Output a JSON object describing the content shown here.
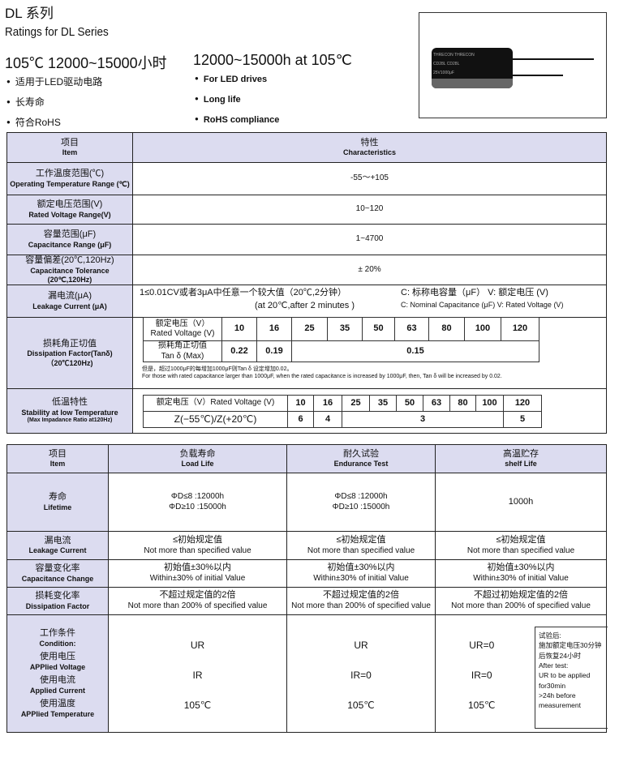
{
  "header": {
    "title": "DL 系列",
    "subtitle": "Ratings for DL  Series",
    "life_cn": "105℃ 12000~15000小时",
    "life_en": "12000~15000h at 105℃",
    "features_cn": [
      "适用于LED驱动电路",
      "长寿命",
      "符合RoHS"
    ],
    "features_en": [
      "For LED drives",
      "Long life",
      "RoHS  compliance"
    ]
  },
  "product_image": {
    "markings": [
      "THRECON",
      "CD28L",
      "25V1000μF"
    ]
  },
  "ratings": {
    "head": {
      "item_cn": "项目",
      "item_en": "Item",
      "char_cn": "特性",
      "char_en": "Characteristics"
    },
    "rows": [
      {
        "cn": "工作温度范围(℃)",
        "en": "Operating Temperature Range (℃)",
        "value": "-55～+105"
      },
      {
        "cn": "额定电压范围(V)",
        "en": "Rated Voltage Range(V)",
        "value": "10~120"
      },
      {
        "cn": "容量范围(μF)",
        "en": "Capacitance Range (μF)",
        "value": "1~4700"
      },
      {
        "cn": "容量偏差(20℃,120Hz)",
        "en": "Capacitance Tolerance (20℃,120Hz)",
        "value": "± 20%"
      }
    ],
    "leakage": {
      "cn": "漏电流(μA)",
      "en": "Leakage Current  (μA)",
      "formula_cn": "1≤0.01CV或者3μA中任意一个较大值（20℃,2分钟）",
      "formula_en": "(at 20℃,after 2 minutes )",
      "legend_cn": "C: 标称电容量（μF） V: 额定电压 (V)",
      "legend_en": "C: Nominal Capacitance (μF)    V: Rated Voltage (V)"
    },
    "dissipation": {
      "cn": "损耗角正切值",
      "en": "Dissipation Factor(Tanδ)",
      "cond": "（20℃120Hz)",
      "voltage_label_cn": "额定电压（V）",
      "voltage_label_en": "Rated Voltage (V)",
      "voltages": [
        "10",
        "16",
        "25",
        "35",
        "50",
        "63",
        "80",
        "100",
        "120"
      ],
      "tan_label_cn": "损耗角正切值",
      "tan_label_en": "Tan δ  (Max)",
      "tan_values": [
        "0.22",
        "0.19",
        "0.15"
      ],
      "note_cn": "但是，超过1000μF的每增加1000μF则Tan δ 设定增加0.02。",
      "note_en": "For those with rated capacitance larger than 1000μF, when the rated capacitance is increased by 1000μF, then, Tan δ will be increased by 0.02."
    },
    "low_temp": {
      "cn": "低温特性",
      "en": "Stability at low Temperature",
      "sub": "(Max Impadance Ratio at120Hz)",
      "voltage_label": "额定电压（V）Rated Voltage (V)",
      "voltages": [
        "10",
        "16",
        "25",
        "35",
        "50",
        "63",
        "80",
        "100",
        "120"
      ],
      "ratio_label": "Z(−55℃)/Z(+20℃)",
      "ratios": [
        "6",
        "4",
        "3",
        "5"
      ]
    }
  },
  "life": {
    "head": [
      {
        "cn": "项目",
        "en": "Item"
      },
      {
        "cn": "负载寿命",
        "en": "Load  Life"
      },
      {
        "cn": "耐久试验",
        "en": "Endurance Test"
      },
      {
        "cn": "高温贮存",
        "en": "shelf Life"
      }
    ],
    "lifetime": {
      "cn": "寿命",
      "en": "Lifetime",
      "values": [
        [
          "ΦD≤8 :12000h",
          "ΦD≥10 :15000h"
        ],
        [
          "ΦD≤8 :12000h",
          "ΦD≥10 :15000h"
        ],
        [
          "1000h"
        ]
      ]
    },
    "leakage": {
      "cn": "漏电流",
      "en": "Leakage Current",
      "values": [
        [
          "≤初始规定值",
          "Not more than specified value"
        ],
        [
          "≤初始规定值",
          "Not more than specified value"
        ],
        [
          "≤初始规定值",
          "Not more than specified value"
        ]
      ]
    },
    "cap_change": {
      "cn": "容量变化率",
      "en": "Capacitance Change",
      "values": [
        [
          "初始值±30%以内",
          "Within±30% of initial Value"
        ],
        [
          "初始值±30%以内",
          "Within±30% of initial Value"
        ],
        [
          "初始值±30%以内",
          "Within±30% of initial Value"
        ]
      ]
    },
    "df": {
      "cn": "损耗变化率",
      "en": "Dissipation Factor",
      "values": [
        [
          "不超过规定值的2倍",
          "Not more than 200% of specified value"
        ],
        [
          "不超过规定值的2倍",
          "Not more than 200% of specified value"
        ],
        [
          "不超过初始规定值的2倍",
          "Not more than 200% of specified value"
        ]
      ]
    },
    "condition": {
      "labels": [
        "工作条件",
        "Condition:",
        "使用电压",
        "APPlied Voltage",
        "使用电流",
        "Applied    Current",
        "使用温度",
        "APPlied Temperature"
      ],
      "cols": [
        [
          "UR",
          "IR",
          "105℃"
        ],
        [
          "UR",
          "IR=0",
          "105℃"
        ],
        [
          "UR=0",
          "IR=0",
          "105℃"
        ]
      ],
      "note": [
        "试验后:",
        "施加额定电压30分钟",
        "后恢复24小时",
        "After test:",
        "UR to be applied",
        "for30min",
        ">24h before",
        "measurement"
      ]
    }
  }
}
